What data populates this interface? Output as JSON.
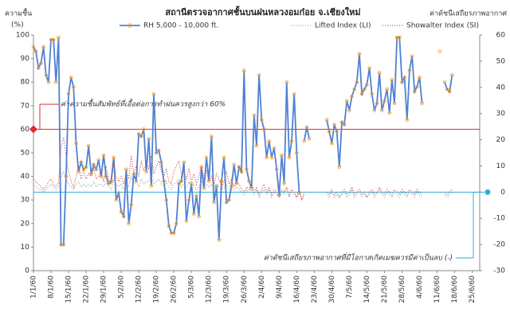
{
  "chart_data": {
    "type": "line",
    "title": "สถานีตรวจอากาศชั้นบนฝนหลวงอมก๋อย จ.เชียงใหม่",
    "y_label": "ความชื้น",
    "y_unit": "(%)",
    "y2_label": "ค่าดัชนีเสถียรภาพอากาศ",
    "x": [
      "1/1/60",
      "2/1/60",
      "3/1/60",
      "4/1/60",
      "5/1/60",
      "6/1/60",
      "7/1/60",
      "8/1/60",
      "9/1/60",
      "10/1/60",
      "11/1/60",
      "12/1/60",
      "13/1/60",
      "14/1/60",
      "15/1/60",
      "16/1/60",
      "17/1/60",
      "18/1/60",
      "19/1/60",
      "20/1/60",
      "21/1/60",
      "22/1/60",
      "23/1/60",
      "24/1/60",
      "25/1/60",
      "26/1/60",
      "27/1/60",
      "28/1/60",
      "29/1/60",
      "30/1/60",
      "31/1/60",
      "1/2/60",
      "2/2/60",
      "3/2/60",
      "4/2/60",
      "5/2/60",
      "6/2/60",
      "7/2/60",
      "8/2/60",
      "9/2/60",
      "10/2/60",
      "11/2/60",
      "12/2/60",
      "13/2/60",
      "14/2/60",
      "15/2/60",
      "16/2/60",
      "17/2/60",
      "18/2/60",
      "19/2/60",
      "20/2/60",
      "21/2/60",
      "22/2/60",
      "23/2/60",
      "24/2/60",
      "25/2/60",
      "26/2/60",
      "27/2/60",
      "28/2/60",
      "1/3/60",
      "2/3/60",
      "3/3/60",
      "4/3/60",
      "5/3/60",
      "6/3/60",
      "7/3/60",
      "8/3/60",
      "9/3/60",
      "10/3/60",
      "11/3/60",
      "12/3/60",
      "13/3/60",
      "14/3/60",
      "15/3/60",
      "16/3/60",
      "17/3/60",
      "18/3/60",
      "19/3/60",
      "20/3/60",
      "21/3/60",
      "22/3/60",
      "23/3/60",
      "24/3/60",
      "25/3/60",
      "26/3/60",
      "27/3/60",
      "28/3/60",
      "29/3/60",
      "30/3/60",
      "31/3/60",
      "1/4/60",
      "2/4/60",
      "3/4/60",
      "4/4/60",
      "5/4/60",
      "6/4/60",
      "7/4/60",
      "8/4/60",
      "9/4/60",
      "10/4/60",
      "11/4/60",
      "12/4/60",
      "13/4/60",
      "14/4/60",
      "15/4/60",
      "16/4/60",
      "17/4/60",
      "18/4/60",
      "19/4/60",
      "20/4/60",
      "21/4/60",
      "22/4/60",
      "23/4/60",
      "24/4/60",
      "25/4/60",
      "26/4/60",
      "27/4/60",
      "28/4/60",
      "29/4/60",
      "30/4/60",
      "1/5/60",
      "2/5/60",
      "3/5/60",
      "4/5/60",
      "5/5/60",
      "6/5/60",
      "7/5/60",
      "8/5/60",
      "9/5/60",
      "10/5/60",
      "11/5/60",
      "12/5/60",
      "13/5/60",
      "14/5/60",
      "15/5/60",
      "16/5/60",
      "17/5/60",
      "18/5/60",
      "19/5/60",
      "20/5/60",
      "21/5/60",
      "22/5/60",
      "23/5/60",
      "24/5/60",
      "25/5/60",
      "26/5/60",
      "27/5/60",
      "28/5/60",
      "29/5/60",
      "30/5/60",
      "31/5/60",
      "1/6/60",
      "2/6/60",
      "3/6/60",
      "4/6/60",
      "5/6/60",
      "6/6/60",
      "7/6/60",
      "8/6/60",
      "9/6/60",
      "10/6/60",
      "11/6/60",
      "12/6/60",
      "13/6/60",
      "14/6/60",
      "15/6/60",
      "16/6/60",
      "17/6/60"
    ],
    "series": [
      {
        "name": "RH 5,000 - 10,000 ft.",
        "color": "#4f81d3",
        "marker_color": "#f5a030",
        "axis": "y",
        "style": "solid",
        "values": [
          95,
          93,
          86,
          88,
          95,
          83,
          80,
          98,
          98,
          80,
          99,
          11,
          11,
          40,
          75,
          82,
          78,
          54,
          42,
          46,
          43,
          44,
          53,
          41,
          45,
          43,
          47,
          40,
          49,
          40,
          37,
          38,
          48,
          30,
          33,
          25,
          23,
          43,
          20,
          28,
          41,
          38,
          58,
          57,
          60,
          42,
          56,
          36,
          75,
          50,
          51,
          46,
          38,
          30,
          19,
          16,
          16,
          20,
          37,
          38,
          46,
          21,
          30,
          37,
          24,
          32,
          23,
          44,
          35,
          48,
          38,
          57,
          29,
          36,
          13,
          38,
          48,
          29,
          30,
          36,
          45,
          37,
          44,
          42,
          85,
          43,
          38,
          35,
          66,
          53,
          83,
          64,
          60,
          48,
          55,
          48,
          52,
          43,
          32,
          49,
          37,
          80,
          48,
          55,
          75,
          50,
          33,
          null,
          55,
          61,
          56,
          null,
          null,
          null,
          null,
          null,
          null,
          64,
          59,
          54,
          62,
          59,
          44,
          63,
          62,
          72,
          68,
          74,
          77,
          80,
          92,
          75,
          77,
          79,
          86,
          75,
          68,
          71,
          84,
          68,
          72,
          77,
          67,
          81,
          71,
          99,
          99,
          80,
          82,
          64,
          85,
          91,
          76,
          78,
          82,
          71,
          null,
          null,
          null,
          null,
          null,
          null,
          93,
          null,
          80,
          77,
          76,
          83
        ]
      },
      {
        "name": "Lifted Index (LI)",
        "color": "#8c9cae",
        "axis": "y2",
        "style": "dotted",
        "values": [
          3,
          2,
          1,
          1,
          0,
          1,
          2,
          3,
          2,
          1,
          2,
          6,
          8,
          5,
          3,
          2,
          1,
          3,
          4,
          2,
          3,
          2,
          3,
          2,
          4,
          2,
          3,
          3,
          2,
          4,
          2,
          1,
          5,
          3,
          2,
          3,
          1,
          3,
          2,
          6,
          3,
          4,
          2,
          5,
          3,
          4,
          4,
          6,
          3,
          4,
          5,
          3,
          2,
          4,
          2,
          1,
          3,
          4,
          5,
          2,
          3,
          2,
          4,
          2,
          3,
          1,
          2,
          4,
          2,
          3,
          2,
          3,
          1,
          3,
          2,
          1,
          2,
          3,
          1,
          2,
          1,
          2,
          1,
          0,
          -1,
          1,
          0,
          1,
          -1,
          1,
          -2,
          0,
          1,
          -1,
          1,
          -2,
          0,
          -1,
          -2,
          0,
          -1,
          1,
          -2,
          0,
          -1,
          -2,
          0,
          -3,
          -1,
          null,
          null,
          null,
          null,
          null,
          null,
          null,
          null,
          -1,
          -2,
          0,
          -2,
          -1,
          -2,
          -1,
          0,
          -2,
          -1,
          1,
          -2,
          -1,
          0,
          -2,
          -1,
          -2,
          -1,
          0,
          -2,
          -1,
          1,
          -1,
          -2,
          0,
          -1,
          -2,
          0,
          -1,
          -2,
          0,
          -1,
          -2,
          0,
          -1,
          -2,
          0,
          -1,
          -2,
          null,
          null,
          null,
          null,
          null,
          null,
          0,
          null,
          -1,
          -2,
          -1,
          0
        ]
      },
      {
        "name": "Showalter Index (SI)",
        "color": "#d04848",
        "axis": "y2",
        "style": "dotted",
        "values": [
          5,
          4,
          3,
          2,
          1,
          2,
          4,
          5,
          3,
          2,
          4,
          17,
          21,
          14,
          8,
          4,
          2,
          6,
          10,
          5,
          8,
          5,
          7,
          6,
          9,
          5,
          6,
          8,
          4,
          10,
          5,
          3,
          12,
          6,
          4,
          6,
          3,
          8,
          5,
          14,
          7,
          10,
          6,
          12,
          8,
          11,
          9,
          14,
          7,
          10,
          12,
          8,
          6,
          9,
          4,
          3,
          8,
          10,
          12,
          6,
          8,
          5,
          9,
          4,
          7,
          3,
          6,
          10,
          5,
          8,
          4,
          6,
          3,
          7,
          5,
          2,
          4,
          8,
          3,
          5,
          2,
          4,
          3,
          1,
          0,
          2,
          1,
          3,
          0,
          2,
          -1,
          1,
          3,
          0,
          2,
          -1,
          1,
          0,
          -2,
          1,
          0,
          2,
          -1,
          1,
          0,
          -2,
          1,
          -3,
          0,
          null,
          null,
          null,
          null,
          null,
          null,
          null,
          null,
          0,
          -1,
          1,
          -1,
          0,
          -2,
          0,
          1,
          -1,
          0,
          2,
          -1,
          0,
          1,
          -1,
          0,
          -2,
          0,
          1,
          -1,
          0,
          2,
          0,
          -1,
          1,
          0,
          -1,
          1,
          0,
          -1,
          1,
          0,
          -1,
          1,
          0,
          -1,
          1,
          0,
          -1,
          null,
          null,
          null,
          null,
          null,
          null,
          1,
          null,
          0,
          -1,
          0,
          1
        ]
      }
    ],
    "xlim": [
      "1/1/60",
      "28/6/60"
    ],
    "xticks": [
      "1/1/60",
      "8/1/60",
      "15/1/60",
      "22/1/60",
      "29/1/60",
      "5/2/60",
      "12/2/60",
      "19/2/60",
      "26/2/60",
      "5/3/60",
      "12/3/60",
      "19/3/60",
      "26/3/60",
      "2/4/60",
      "9/4/60",
      "16/4/60",
      "23/4/60",
      "30/4/60",
      "7/5/60",
      "14/5/60",
      "21/5/60",
      "28/5/60",
      "4/6/60",
      "11/6/60",
      "18/6/60",
      "25/6/60"
    ],
    "ylim": [
      0,
      100
    ],
    "yticks": [
      0,
      10,
      20,
      30,
      40,
      50,
      60,
      70,
      80,
      90,
      100
    ],
    "y2lim": [
      -30,
      60
    ],
    "y2ticks": [
      -30,
      -20,
      -10,
      0,
      10,
      20,
      30,
      40,
      50,
      60
    ],
    "grid": false,
    "legend": "top",
    "annotations": [
      {
        "text": "ค่าความชื้นสัมพัทธ์ที่เอื้อต่อการทำฝนควรสูงกว่า 60%",
        "axis": "y",
        "value": 60,
        "color": "#e8262b"
      },
      {
        "text": "ค่าดัชนีเสถียรภาพอากาศที่มีโอกาสเกิดเมฆควรมีค่าเป็นลบ (-)",
        "axis": "y2",
        "value": 0,
        "color": "#2bb0d8"
      }
    ]
  }
}
